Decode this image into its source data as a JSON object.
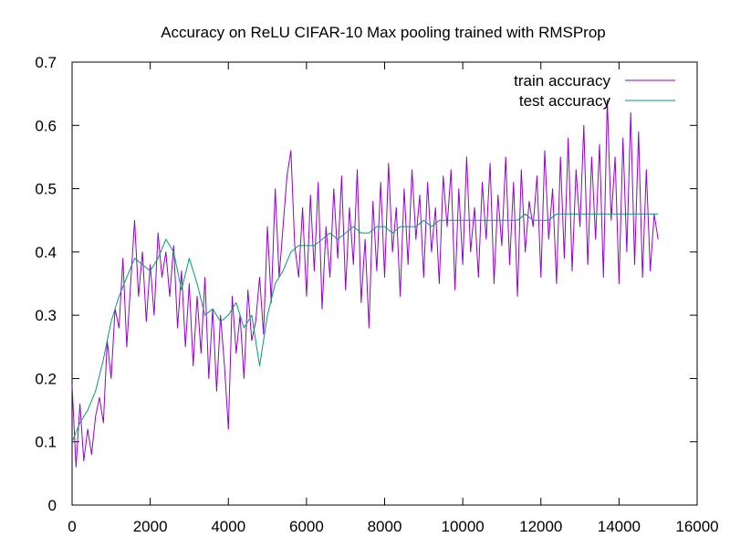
{
  "chart_data": {
    "type": "line",
    "title": "Accuracy on ReLU CIFAR-10 Max pooling trained with RMSProp",
    "xlabel": "",
    "ylabel": "",
    "xlim": [
      0,
      16000
    ],
    "ylim": [
      0,
      0.7
    ],
    "xticks": [
      0,
      2000,
      4000,
      6000,
      8000,
      10000,
      12000,
      14000,
      16000
    ],
    "xtick_labels": [
      "0",
      "2000",
      "4000",
      "6000",
      "8000",
      "10000",
      "12000",
      "14000",
      "16000"
    ],
    "yticks": [
      0,
      0.1,
      0.2,
      0.3,
      0.4,
      0.5,
      0.6,
      0.7
    ],
    "ytick_labels": [
      "0",
      "0.1",
      "0.2",
      "0.3",
      "0.4",
      "0.5",
      "0.6",
      "0.7"
    ],
    "grid": false,
    "legend_position": "top-right",
    "series": [
      {
        "name": "train accuracy",
        "color": "#9400d3",
        "x": [
          0,
          100,
          200,
          300,
          400,
          500,
          600,
          700,
          800,
          900,
          1000,
          1100,
          1200,
          1300,
          1400,
          1500,
          1600,
          1700,
          1800,
          1900,
          2000,
          2100,
          2200,
          2300,
          2400,
          2500,
          2600,
          2700,
          2800,
          2900,
          3000,
          3100,
          3200,
          3300,
          3400,
          3500,
          3600,
          3700,
          3800,
          3900,
          4000,
          4100,
          4200,
          4300,
          4400,
          4500,
          4600,
          4700,
          4800,
          4900,
          5000,
          5100,
          5200,
          5300,
          5400,
          5500,
          5600,
          5700,
          5800,
          5900,
          6000,
          6100,
          6200,
          6300,
          6400,
          6500,
          6600,
          6700,
          6800,
          6900,
          7000,
          7100,
          7200,
          7300,
          7400,
          7500,
          7600,
          7700,
          7800,
          7900,
          8000,
          8100,
          8200,
          8300,
          8400,
          8500,
          8600,
          8700,
          8800,
          8900,
          9000,
          9100,
          9200,
          9300,
          9400,
          9500,
          9600,
          9700,
          9800,
          9900,
          10000,
          10100,
          10200,
          10300,
          10400,
          10500,
          10600,
          10700,
          10800,
          10900,
          11000,
          11100,
          11200,
          11300,
          11400,
          11500,
          11600,
          11700,
          11800,
          11900,
          12000,
          12100,
          12200,
          12300,
          12400,
          12500,
          12600,
          12700,
          12800,
          12900,
          13000,
          13100,
          13200,
          13300,
          13400,
          13500,
          13600,
          13700,
          13800,
          13900,
          14000,
          14100,
          14200,
          14300,
          14400,
          14500,
          14600,
          14700,
          14800,
          14900,
          15000
        ],
        "values": [
          0.19,
          0.06,
          0.16,
          0.07,
          0.12,
          0.08,
          0.14,
          0.17,
          0.13,
          0.26,
          0.2,
          0.31,
          0.28,
          0.39,
          0.25,
          0.35,
          0.45,
          0.33,
          0.4,
          0.29,
          0.38,
          0.3,
          0.43,
          0.36,
          0.4,
          0.33,
          0.41,
          0.28,
          0.37,
          0.25,
          0.35,
          0.22,
          0.33,
          0.24,
          0.36,
          0.2,
          0.31,
          0.18,
          0.3,
          0.22,
          0.12,
          0.33,
          0.24,
          0.3,
          0.2,
          0.34,
          0.26,
          0.29,
          0.36,
          0.27,
          0.44,
          0.32,
          0.5,
          0.36,
          0.44,
          0.52,
          0.56,
          0.41,
          0.36,
          0.47,
          0.33,
          0.49,
          0.37,
          0.51,
          0.31,
          0.44,
          0.36,
          0.5,
          0.39,
          0.52,
          0.34,
          0.47,
          0.38,
          0.53,
          0.32,
          0.42,
          0.28,
          0.48,
          0.37,
          0.51,
          0.36,
          0.54,
          0.4,
          0.47,
          0.33,
          0.5,
          0.38,
          0.53,
          0.42,
          0.49,
          0.36,
          0.51,
          0.4,
          0.47,
          0.35,
          0.52,
          0.44,
          0.53,
          0.34,
          0.5,
          0.38,
          0.55,
          0.4,
          0.47,
          0.36,
          0.51,
          0.42,
          0.54,
          0.35,
          0.49,
          0.41,
          0.55,
          0.38,
          0.51,
          0.33,
          0.53,
          0.4,
          0.48,
          0.44,
          0.52,
          0.36,
          0.56,
          0.42,
          0.5,
          0.35,
          0.55,
          0.39,
          0.58,
          0.37,
          0.53,
          0.44,
          0.6,
          0.38,
          0.55,
          0.42,
          0.57,
          0.36,
          0.64,
          0.45,
          0.55,
          0.35,
          0.58,
          0.4,
          0.62,
          0.38,
          0.59,
          0.36,
          0.53,
          0.37,
          0.46,
          0.42
        ]
      },
      {
        "name": "test accuracy",
        "color": "#009e73",
        "x": [
          0,
          200,
          400,
          600,
          800,
          1000,
          1200,
          1400,
          1600,
          1800,
          2000,
          2200,
          2400,
          2600,
          2800,
          3000,
          3200,
          3400,
          3600,
          3800,
          4000,
          4200,
          4400,
          4600,
          4800,
          5000,
          5200,
          5400,
          5600,
          5800,
          6000,
          6200,
          6400,
          6600,
          6800,
          7000,
          7200,
          7400,
          7600,
          7800,
          8000,
          8200,
          8400,
          8600,
          8800,
          9000,
          9200,
          9400,
          9600,
          9800,
          10000,
          10200,
          10400,
          10600,
          10800,
          11000,
          11200,
          11400,
          11600,
          11800,
          12000,
          12200,
          12400,
          12600,
          12800,
          13000,
          13200,
          13400,
          13600,
          13800,
          14000,
          14200,
          14400,
          14600,
          14800,
          15000
        ],
        "values": [
          0.1,
          0.13,
          0.15,
          0.18,
          0.23,
          0.29,
          0.33,
          0.36,
          0.39,
          0.38,
          0.37,
          0.39,
          0.42,
          0.4,
          0.34,
          0.39,
          0.35,
          0.3,
          0.31,
          0.29,
          0.3,
          0.32,
          0.28,
          0.3,
          0.22,
          0.3,
          0.35,
          0.37,
          0.4,
          0.41,
          0.41,
          0.41,
          0.42,
          0.43,
          0.42,
          0.43,
          0.44,
          0.43,
          0.43,
          0.44,
          0.44,
          0.43,
          0.44,
          0.44,
          0.44,
          0.45,
          0.44,
          0.45,
          0.45,
          0.45,
          0.45,
          0.45,
          0.45,
          0.45,
          0.45,
          0.45,
          0.45,
          0.45,
          0.46,
          0.45,
          0.45,
          0.45,
          0.46,
          0.46,
          0.46,
          0.46,
          0.46,
          0.46,
          0.46,
          0.46,
          0.46,
          0.46,
          0.46,
          0.46,
          0.46,
          0.46
        ]
      }
    ]
  }
}
